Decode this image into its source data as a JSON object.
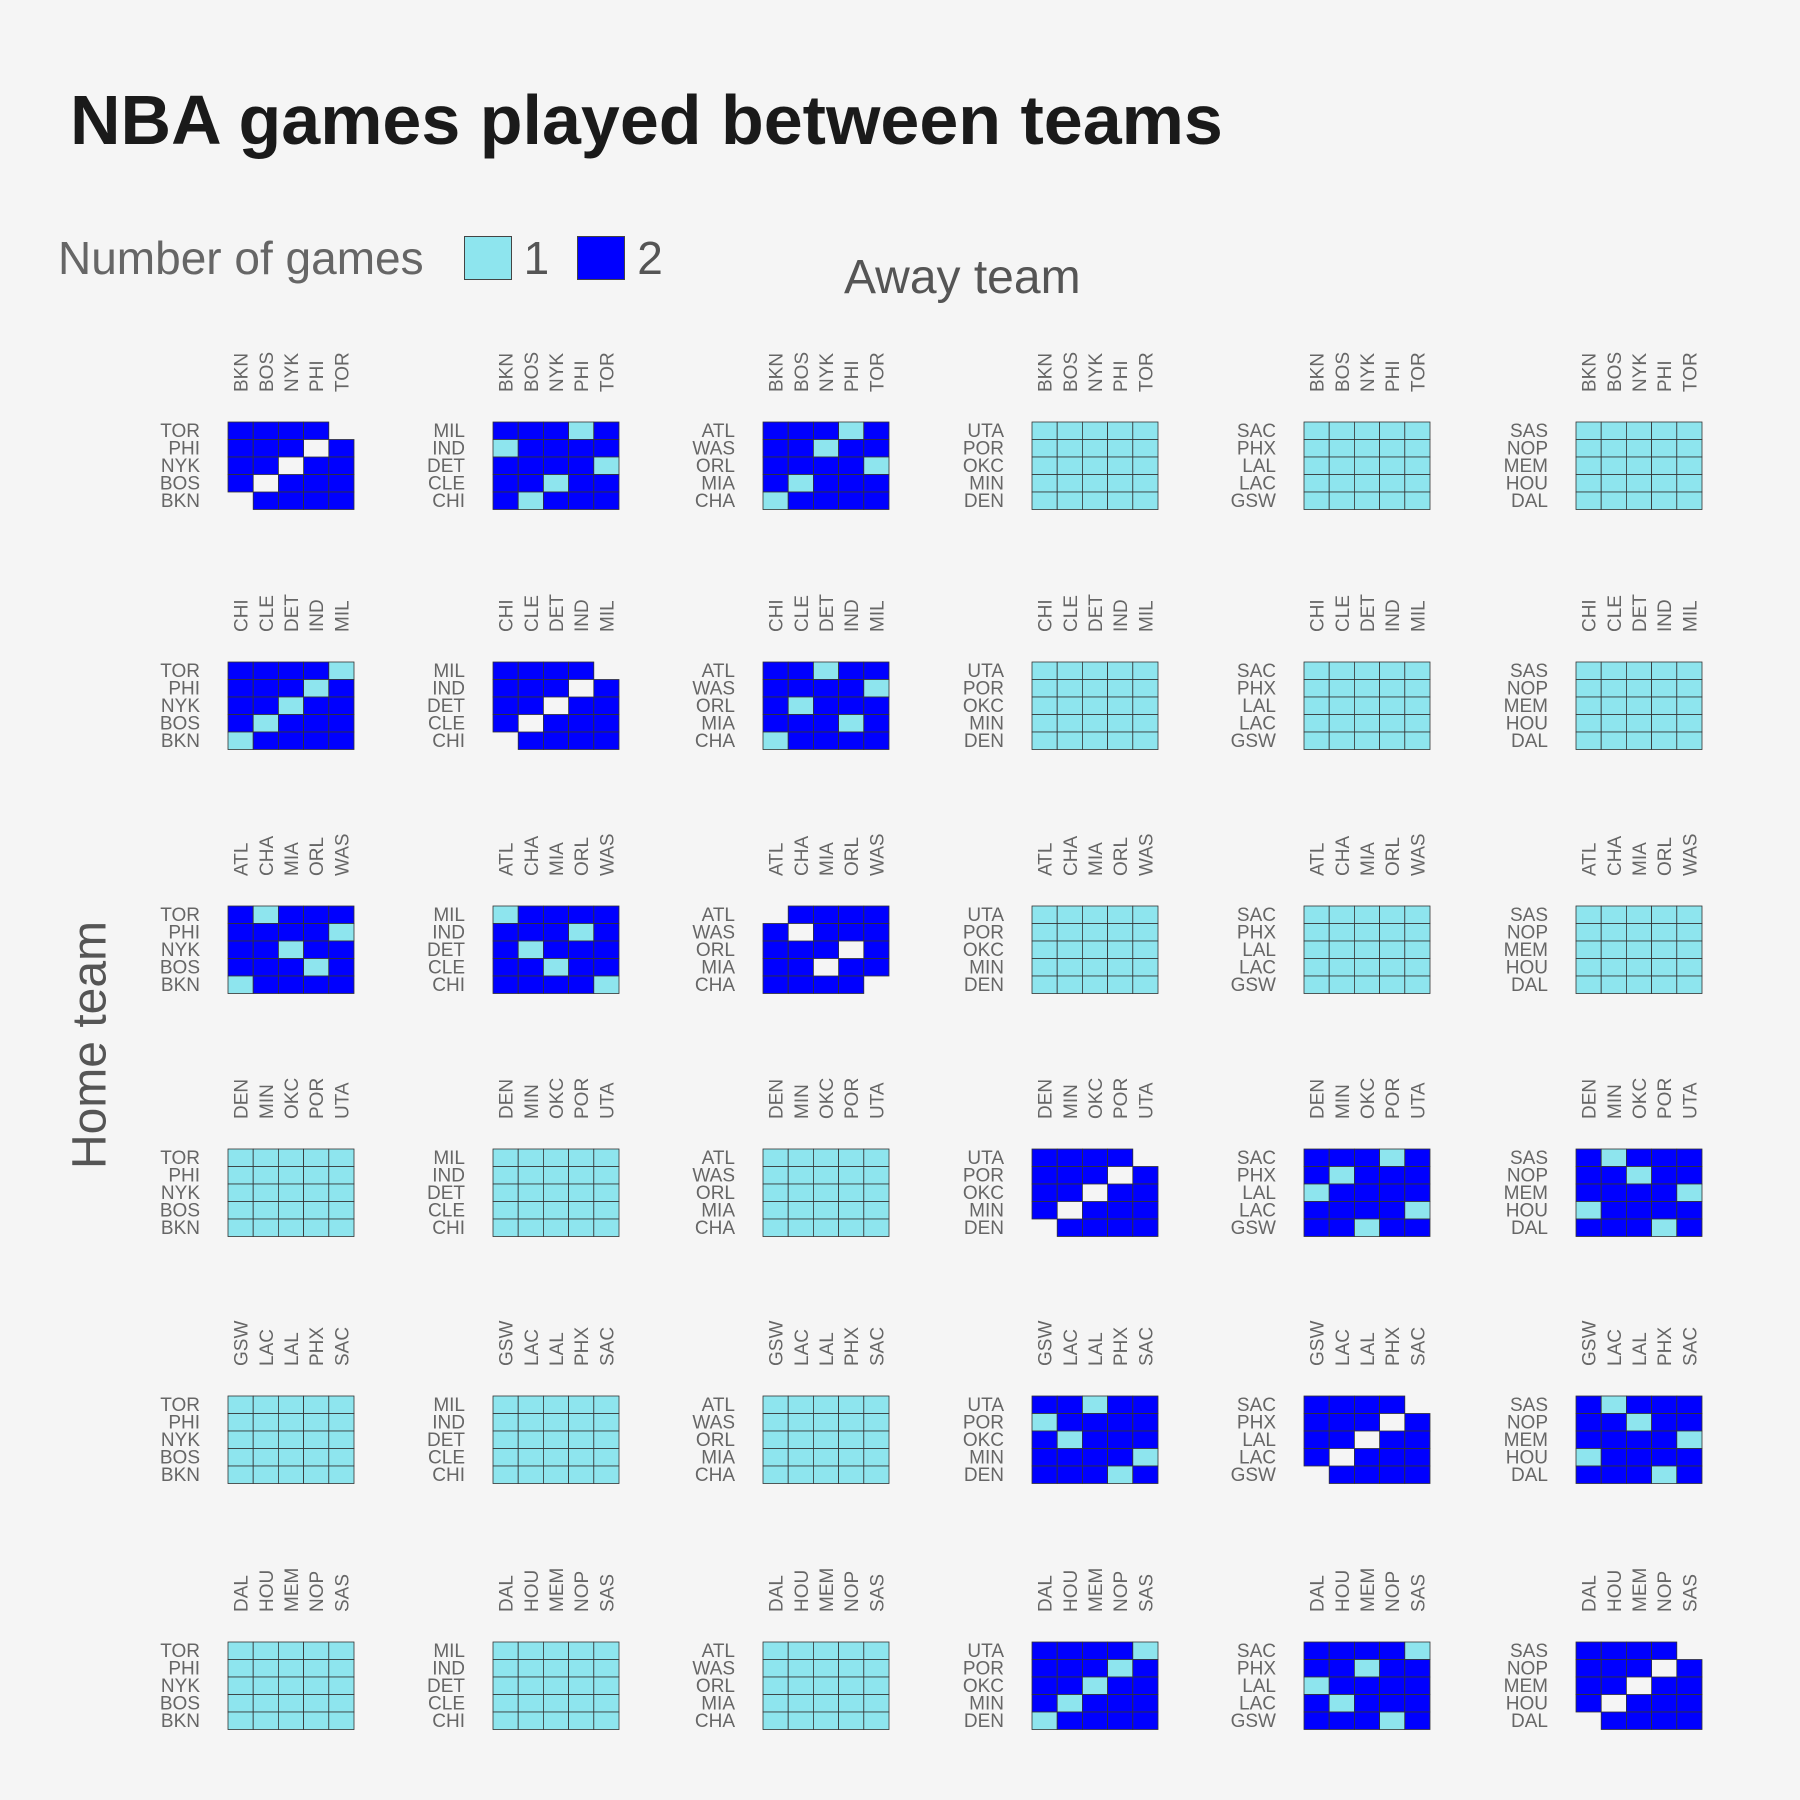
{
  "chart_data": {
    "type": "heatmap",
    "title": "NBA games played between teams",
    "xlabel": "Away team",
    "ylabel": "Home team",
    "legend": {
      "title": "Number of games",
      "position": "top-left",
      "entries": [
        {
          "label": "1",
          "color": "#8ee5ee"
        },
        {
          "label": "2",
          "color": "#0000ff"
        }
      ]
    },
    "panel_rows": [
      [
        "TOR",
        "PHI",
        "NYK",
        "BOS",
        "BKN"
      ],
      [
        "MIL",
        "IND",
        "DET",
        "CLE",
        "CHI"
      ],
      [
        "ATL",
        "WAS",
        "ORL",
        "MIA",
        "CHA"
      ],
      [
        "UTA",
        "POR",
        "OKC",
        "MIN",
        "DEN"
      ],
      [
        "SAC",
        "PHX",
        "LAL",
        "LAC",
        "GSW"
      ],
      [
        "SAS",
        "NOP",
        "MEM",
        "HOU",
        "DAL"
      ]
    ],
    "panel_cols": [
      [
        "BKN",
        "BOS",
        "NYK",
        "PHI",
        "TOR"
      ],
      [
        "CHI",
        "CLE",
        "DET",
        "IND",
        "MIL"
      ],
      [
        "ATL",
        "CHA",
        "MIA",
        "ORL",
        "WAS"
      ],
      [
        "DEN",
        "MIN",
        "OKC",
        "POR",
        "UTA"
      ],
      [
        "GSW",
        "LAC",
        "LAL",
        "PHX",
        "SAC"
      ],
      [
        "DAL",
        "HOU",
        "MEM",
        "NOP",
        "SAS"
      ]
    ],
    "panels": [
      [
        [
          "22220",
          "22202",
          "22022",
          "20222",
          "02222"
        ],
        [
          "22212",
          "12222",
          "22221",
          "22122",
          "21222"
        ],
        [
          "22212",
          "22122",
          "22221",
          "21222",
          "12222"
        ],
        [
          "11111",
          "11111",
          "11111",
          "11111",
          "11111"
        ],
        [
          "11111",
          "11111",
          "11111",
          "11111",
          "11111"
        ],
        [
          "11111",
          "11111",
          "11111",
          "11111",
          "11111"
        ]
      ],
      [
        [
          "22221",
          "22212",
          "22122",
          "21222",
          "12222"
        ],
        [
          "22220",
          "22202",
          "22022",
          "20222",
          "02222"
        ],
        [
          "22122",
          "22221",
          "21222",
          "22212",
          "12222"
        ],
        [
          "11111",
          "11111",
          "11111",
          "11111",
          "11111"
        ],
        [
          "11111",
          "11111",
          "11111",
          "11111",
          "11111"
        ],
        [
          "11111",
          "11111",
          "11111",
          "11111",
          "11111"
        ]
      ],
      [
        [
          "21222",
          "22221",
          "22122",
          "22212",
          "12222"
        ],
        [
          "12222",
          "22212",
          "21222",
          "22122",
          "22221"
        ],
        [
          "02222",
          "20222",
          "22202",
          "22022",
          "22220"
        ],
        [
          "11111",
          "11111",
          "11111",
          "11111",
          "11111"
        ],
        [
          "11111",
          "11111",
          "11111",
          "11111",
          "11111"
        ],
        [
          "11111",
          "11111",
          "11111",
          "11111",
          "11111"
        ]
      ],
      [
        [
          "11111",
          "11111",
          "11111",
          "11111",
          "11111"
        ],
        [
          "11111",
          "11111",
          "11111",
          "11111",
          "11111"
        ],
        [
          "11111",
          "11111",
          "11111",
          "11111",
          "11111"
        ],
        [
          "22220",
          "22202",
          "22022",
          "20222",
          "02222"
        ],
        [
          "22212",
          "21222",
          "12222",
          "22221",
          "22122"
        ],
        [
          "21222",
          "22122",
          "22221",
          "12222",
          "22212"
        ]
      ],
      [
        [
          "11111",
          "11111",
          "11111",
          "11111",
          "11111"
        ],
        [
          "11111",
          "11111",
          "11111",
          "11111",
          "11111"
        ],
        [
          "11111",
          "11111",
          "11111",
          "11111",
          "11111"
        ],
        [
          "22122",
          "12222",
          "21222",
          "22221",
          "22212"
        ],
        [
          "22220",
          "22202",
          "22022",
          "20222",
          "02222"
        ],
        [
          "21222",
          "22122",
          "22221",
          "12222",
          "22212"
        ]
      ],
      [
        [
          "11111",
          "11111",
          "11111",
          "11111",
          "11111"
        ],
        [
          "11111",
          "11111",
          "11111",
          "11111",
          "11111"
        ],
        [
          "11111",
          "11111",
          "11111",
          "11111",
          "11111"
        ],
        [
          "22221",
          "22212",
          "22122",
          "21222",
          "12222"
        ],
        [
          "22221",
          "22122",
          "12222",
          "21222",
          "22212"
        ],
        [
          "22220",
          "22202",
          "22022",
          "20222",
          "02222"
        ]
      ]
    ]
  }
}
